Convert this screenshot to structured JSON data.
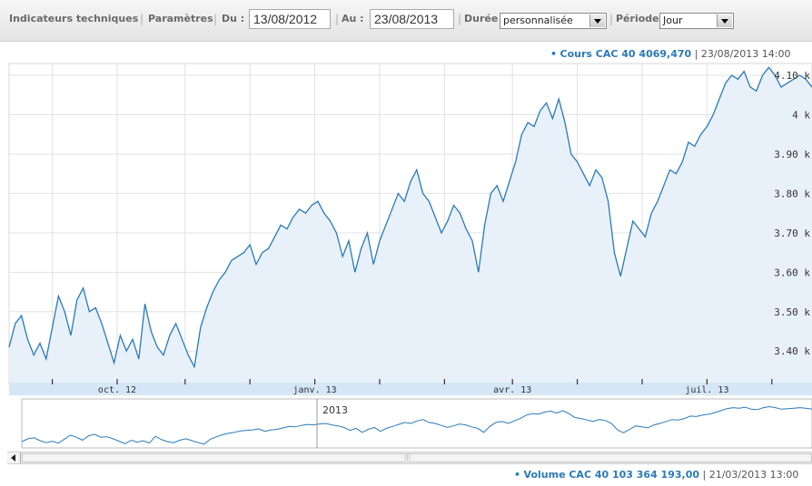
{
  "toolbar": {
    "technical_indicators_label": "Indicateurs techniques",
    "parameters_label": "Paramètres",
    "from_label": "Du :",
    "from_value": "13/08/2012",
    "to_label": "Au :",
    "to_value": "23/08/2013",
    "duration_label": "Durée",
    "duration_value": "personnalisée",
    "period_label": "Période",
    "period_value": "Jour"
  },
  "price_header": {
    "label": "Cours CAC 40 4069,470",
    "datetime": "23/08/2013 14:00"
  },
  "volume_header": {
    "label": "Volume CAC 40 103 364 193,00",
    "datetime": "21/03/2013 13:00"
  },
  "navigator": {
    "year_label": "2013"
  },
  "colors": {
    "line": "#2a7ab8",
    "area_fill": "#e8f1fa",
    "axis_band": "#d5e6f6",
    "grid": "#e2e2e2"
  },
  "chart_data": {
    "type": "area",
    "x_unit": "trading day index",
    "x_range": [
      0,
      260
    ],
    "ylim": [
      3.32,
      4.13
    ],
    "y_ticks": [
      "3.40 k",
      "3.50 k",
      "3.60 k",
      "3.70 k",
      "3.80 k",
      "3.90 k",
      "4 k",
      "4.10 k"
    ],
    "y_tick_values": [
      3.4,
      3.5,
      3.6,
      3.7,
      3.8,
      3.9,
      4.0,
      4.1
    ],
    "x_ticks": [
      {
        "label": "oct. 12",
        "x": 35
      },
      {
        "label": "janv. 13",
        "x": 99
      },
      {
        "label": "avr. 13",
        "x": 163
      },
      {
        "label": "juil. 13",
        "x": 226
      }
    ],
    "x_gridlines": [
      14,
      35,
      57,
      78,
      99,
      120,
      141,
      163,
      184,
      205,
      226,
      247
    ],
    "series": [
      {
        "x": [
          0,
          2,
          4,
          6,
          8,
          10,
          12,
          14,
          16,
          18,
          20,
          22,
          24,
          26,
          28,
          30,
          32,
          34,
          36,
          38,
          40,
          42,
          44,
          46,
          48,
          50,
          52,
          54,
          56,
          58,
          60,
          62,
          64,
          66,
          68,
          70,
          72,
          74,
          76,
          78,
          80,
          82,
          84,
          86,
          88,
          90,
          92,
          94,
          96,
          98,
          100,
          102,
          104,
          106,
          108,
          110,
          112,
          114,
          116,
          118,
          120,
          122,
          124,
          126,
          128,
          130,
          132,
          134,
          136,
          138,
          140,
          142,
          144,
          146,
          148,
          150,
          152,
          154,
          156,
          158,
          160,
          162,
          164,
          166,
          168,
          170,
          172,
          174,
          176,
          178,
          180,
          182,
          184,
          186,
          188,
          190,
          192,
          194,
          196,
          198,
          200,
          202,
          204,
          206,
          208,
          210,
          212,
          214,
          216,
          218,
          220,
          222,
          224,
          226,
          228,
          230,
          232,
          234,
          236,
          238,
          240,
          242,
          244,
          246,
          248,
          250,
          252,
          254,
          256,
          258,
          260
        ],
        "values": [
          3.41,
          3.47,
          3.49,
          3.43,
          3.39,
          3.42,
          3.38,
          3.46,
          3.54,
          3.5,
          3.44,
          3.53,
          3.56,
          3.5,
          3.51,
          3.47,
          3.42,
          3.37,
          3.44,
          3.4,
          3.43,
          3.38,
          3.52,
          3.45,
          3.41,
          3.39,
          3.44,
          3.47,
          3.43,
          3.39,
          3.36,
          3.46,
          3.51,
          3.55,
          3.58,
          3.6,
          3.63,
          3.64,
          3.65,
          3.67,
          3.62,
          3.65,
          3.66,
          3.69,
          3.72,
          3.71,
          3.74,
          3.76,
          3.75,
          3.77,
          3.78,
          3.75,
          3.73,
          3.7,
          3.64,
          3.68,
          3.6,
          3.66,
          3.7,
          3.62,
          3.68,
          3.72,
          3.76,
          3.8,
          3.78,
          3.83,
          3.86,
          3.8,
          3.78,
          3.74,
          3.7,
          3.73,
          3.77,
          3.75,
          3.71,
          3.68,
          3.6,
          3.72,
          3.8,
          3.82,
          3.78,
          3.83,
          3.88,
          3.95,
          3.98,
          3.97,
          4.01,
          4.03,
          3.99,
          4.04,
          3.98,
          3.9,
          3.88,
          3.85,
          3.82,
          3.86,
          3.84,
          3.78,
          3.65,
          3.59,
          3.66,
          3.73,
          3.71,
          3.69,
          3.75,
          3.78,
          3.82,
          3.86,
          3.85,
          3.88,
          3.93,
          3.92,
          3.95,
          3.97,
          4.0,
          4.04,
          4.08,
          4.1,
          4.09,
          4.11,
          4.07,
          4.06,
          4.1,
          4.12,
          4.1,
          4.07,
          4.08,
          4.09,
          4.1,
          4.09,
          4.07
        ]
      }
    ]
  }
}
